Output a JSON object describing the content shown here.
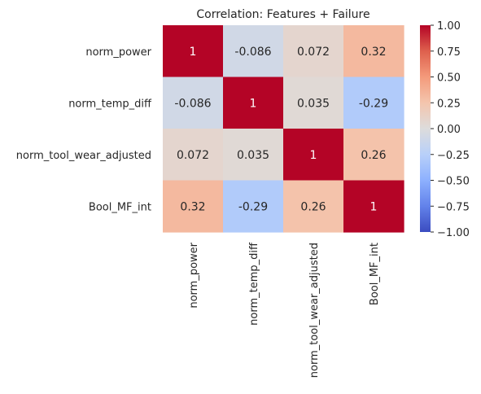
{
  "chart_data": {
    "type": "heatmap",
    "title": "Correlation: Features + Failure",
    "row_labels": [
      "norm_power",
      "norm_temp_diff",
      "norm_tool_wear_adjusted",
      "Bool_MF_int"
    ],
    "col_labels": [
      "norm_power",
      "norm_temp_diff",
      "norm_tool_wear_adjusted",
      "Bool_MF_int"
    ],
    "values": [
      [
        1,
        -0.086,
        0.072,
        0.32
      ],
      [
        -0.086,
        1,
        0.035,
        -0.29
      ],
      [
        0.072,
        0.035,
        1,
        0.26
      ],
      [
        0.32,
        -0.29,
        0.26,
        1
      ]
    ],
    "annotations": [
      [
        "1",
        "-0.086",
        "0.072",
        "0.32"
      ],
      [
        "-0.086",
        "1",
        "0.035",
        "-0.29"
      ],
      [
        "0.072",
        "0.035",
        "1",
        "0.26"
      ],
      [
        "0.32",
        "-0.29",
        "0.26",
        "1"
      ]
    ],
    "colormap": "coolwarm",
    "vmin": -1,
    "vmax": 1,
    "colorbar_ticks": [
      1.0,
      0.75,
      0.5,
      0.25,
      0.0,
      -0.25,
      -0.5,
      -0.75,
      -1.0
    ],
    "colorbar_tick_labels": [
      "1.00",
      "0.75",
      "0.50",
      "0.25",
      "0.00",
      "−0.25",
      "−0.50",
      "−0.75",
      "−1.00"
    ],
    "colorbar_colors": [
      "#3b4cc0",
      "#6282ea",
      "#8db0fe",
      "#b8d0f9",
      "#dddcdc",
      "#f4c5ad",
      "#f49a7b",
      "#de604d",
      "#b40426"
    ]
  }
}
